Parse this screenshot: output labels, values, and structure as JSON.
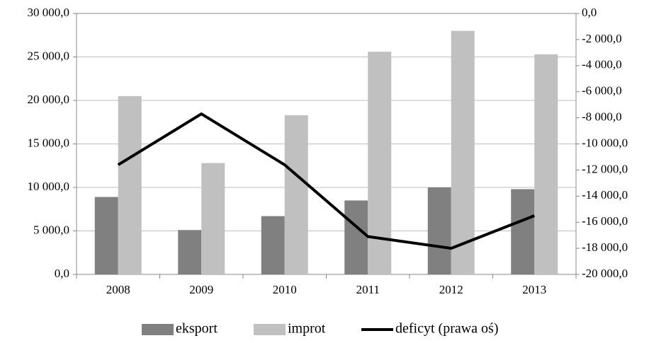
{
  "chart_data": {
    "type": "bar",
    "categories": [
      "2008",
      "2009",
      "2010",
      "2011",
      "2012",
      "2013"
    ],
    "series": [
      {
        "name": "eksport",
        "color": "#808080",
        "type": "bar",
        "values": [
          8900,
          5100,
          6700,
          8500,
          10000,
          9800
        ]
      },
      {
        "name": "improt",
        "color": "#c0c0c0",
        "type": "bar",
        "values": [
          20500,
          12800,
          18300,
          25600,
          28000,
          25300
        ]
      },
      {
        "name": "deficyt (prawa oś)",
        "color": "#000000",
        "type": "line",
        "axis": "y2",
        "values": [
          -11600,
          -7700,
          -11600,
          -17100,
          -18000,
          -15500
        ]
      }
    ],
    "ylim": [
      0,
      30000
    ],
    "yticks": [
      {
        "value": 0,
        "label": "0,0"
      },
      {
        "value": 5000,
        "label": "5 000,0"
      },
      {
        "value": 10000,
        "label": "10 000,0"
      },
      {
        "value": 15000,
        "label": "15 000,0"
      },
      {
        "value": 20000,
        "label": "20 000,0"
      },
      {
        "value": 25000,
        "label": "25 000,0"
      },
      {
        "value": 30000,
        "label": "30 000,0"
      }
    ],
    "y2lim": [
      -20000,
      0
    ],
    "y2ticks": [
      {
        "value": -20000,
        "label": "-20 000,0"
      },
      {
        "value": -18000,
        "label": "-18 000,0"
      },
      {
        "value": -16000,
        "label": "-16 000,0"
      },
      {
        "value": -14000,
        "label": "-14 000,0"
      },
      {
        "value": -12000,
        "label": "-12 000,0"
      },
      {
        "value": -10000,
        "label": "-10 000,0"
      },
      {
        "value": -8000,
        "label": "-8 000,0"
      },
      {
        "value": -6000,
        "label": "-6 000,0"
      },
      {
        "value": -4000,
        "label": "-4 000,0"
      },
      {
        "value": -2000,
        "label": "-2 000,0"
      },
      {
        "value": 0,
        "label": "0,0"
      }
    ],
    "grid": true,
    "legend": "bottom"
  }
}
